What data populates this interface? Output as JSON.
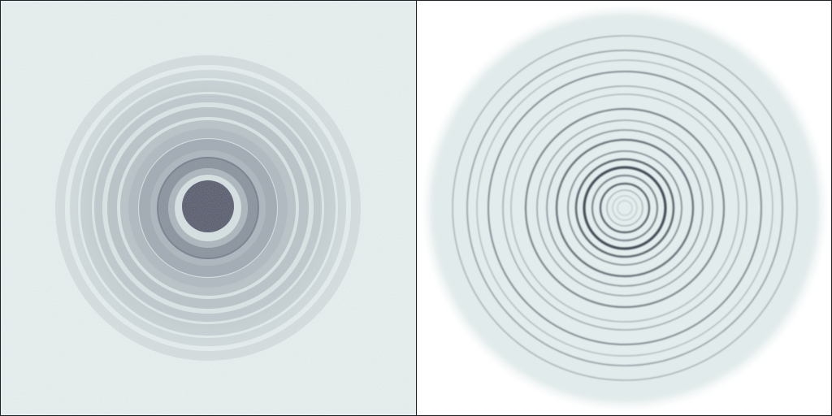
{
  "panels": [
    {
      "id": "raw",
      "kind": "noisy-concentric-diffraction-rings",
      "background": "#e8f0f0",
      "ring_color": "#4a5064",
      "center_color": "#3a3a52"
    },
    {
      "id": "reconstructed",
      "kind": "sharp-concentric-rings-in-disc",
      "background": "#ffffff",
      "disc_color": "#e6eeee",
      "ring_color": "#2a3440"
    }
  ]
}
